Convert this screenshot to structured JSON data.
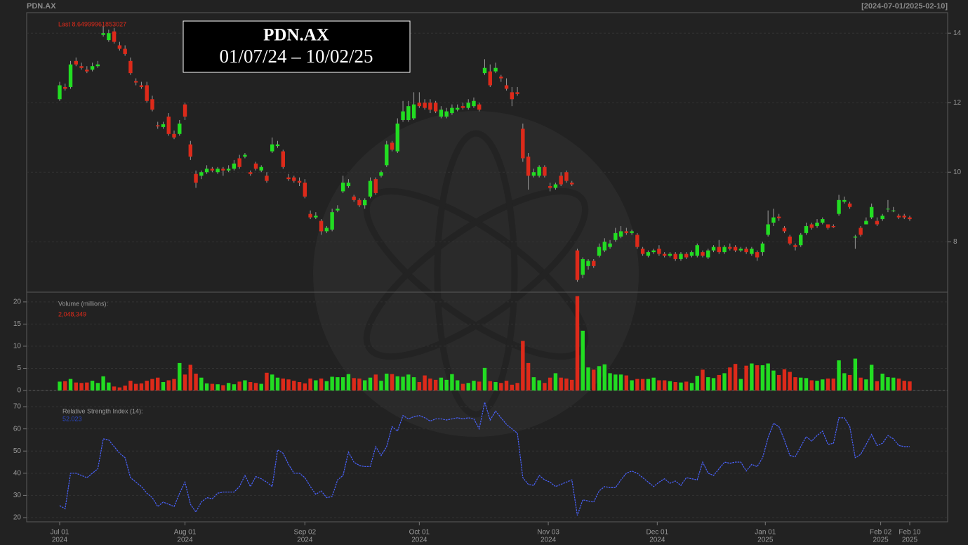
{
  "header": {
    "left": "PDN.AX",
    "right": "[2024-07-01/2025-02-10]"
  },
  "title_box": {
    "title": "PDN.AX",
    "subtitle": "01/07/24 – 10/02/25"
  },
  "chart_data": [
    {
      "type": "candlestick",
      "annotation": "Last 8.64999961853027",
      "x": [
        "2024-07-01",
        "2024-07-02",
        "2024-07-03",
        "2024-07-04",
        "2024-07-05",
        "2024-07-08",
        "2024-07-09",
        "2024-07-10",
        "2024-07-11",
        "2024-07-12",
        "2024-07-15",
        "2024-07-16",
        "2024-07-17",
        "2024-07-18",
        "2024-07-19",
        "2024-07-22",
        "2024-07-23",
        "2024-07-24",
        "2024-07-25",
        "2024-07-26",
        "2024-07-29",
        "2024-07-30",
        "2024-07-31",
        "2024-08-01",
        "2024-08-02",
        "2024-08-05",
        "2024-08-06",
        "2024-08-07",
        "2024-08-08",
        "2024-08-09",
        "2024-08-12",
        "2024-08-13",
        "2024-08-14",
        "2024-08-15",
        "2024-08-16",
        "2024-08-19",
        "2024-08-20",
        "2024-08-21",
        "2024-08-22",
        "2024-08-23",
        "2024-08-26",
        "2024-08-27",
        "2024-08-28",
        "2024-08-29",
        "2024-08-30",
        "2024-09-02",
        "2024-09-03",
        "2024-09-04",
        "2024-09-05",
        "2024-09-06",
        "2024-09-09",
        "2024-09-10",
        "2024-09-11",
        "2024-09-12",
        "2024-09-13",
        "2024-09-16",
        "2024-09-17",
        "2024-09-18",
        "2024-09-19",
        "2024-09-20",
        "2024-09-23",
        "2024-09-24",
        "2024-09-25",
        "2024-09-26",
        "2024-09-27",
        "2024-09-30",
        "2024-10-01",
        "2024-10-02",
        "2024-10-03",
        "2024-10-04",
        "2024-10-07",
        "2024-10-08",
        "2024-10-09",
        "2024-10-10",
        "2024-10-11",
        "2024-10-14",
        "2024-10-15",
        "2024-10-16",
        "2024-10-17",
        "2024-10-18",
        "2024-10-21",
        "2024-10-22",
        "2024-10-23",
        "2024-10-24",
        "2024-10-25",
        "2024-10-28",
        "2024-10-29",
        "2024-10-30",
        "2024-10-31",
        "2024-11-01",
        "2024-11-04",
        "2024-11-05",
        "2024-11-06",
        "2024-11-07",
        "2024-11-08",
        "2024-11-11",
        "2024-11-12",
        "2024-11-13",
        "2024-11-14",
        "2024-11-15",
        "2024-11-18",
        "2024-11-19",
        "2024-11-20",
        "2024-11-21",
        "2024-11-22",
        "2024-11-25",
        "2024-11-26",
        "2024-11-27",
        "2024-11-28",
        "2024-11-29",
        "2024-12-02",
        "2024-12-03",
        "2024-12-04",
        "2024-12-05",
        "2024-12-06",
        "2024-12-09",
        "2024-12-10",
        "2024-12-11",
        "2024-12-12",
        "2024-12-13",
        "2024-12-16",
        "2024-12-17",
        "2024-12-18",
        "2024-12-19",
        "2024-12-20",
        "2024-12-23",
        "2024-12-24",
        "2024-12-27",
        "2024-12-30",
        "2024-12-31",
        "2025-01-02",
        "2025-01-03",
        "2025-01-06",
        "2025-01-07",
        "2025-01-08",
        "2025-01-09",
        "2025-01-10",
        "2025-01-13",
        "2025-01-14",
        "2025-01-15",
        "2025-01-16",
        "2025-01-17",
        "2025-01-20",
        "2025-01-21",
        "2025-01-22",
        "2025-01-23",
        "2025-01-24",
        "2025-01-28",
        "2025-01-29",
        "2025-01-30",
        "2025-01-31",
        "2025-02-03",
        "2025-02-04",
        "2025-02-05",
        "2025-02-06",
        "2025-02-07",
        "2025-02-10"
      ],
      "open": [
        12.1,
        12.45,
        12.45,
        13.2,
        13.05,
        12.95,
        12.95,
        13.05,
        13.95,
        13.8,
        14.05,
        13.65,
        13.55,
        13.2,
        12.62,
        12.5,
        12.5,
        12.1,
        11.35,
        11.3,
        11.6,
        11.1,
        11.1,
        11.95,
        10.8,
        9.95,
        9.9,
        10.0,
        10.1,
        10.0,
        10.1,
        10.05,
        10.1,
        10.4,
        10.45,
        10.0,
        10.25,
        10.05,
        9.9,
        10.6,
        10.75,
        10.6,
        9.85,
        9.85,
        9.75,
        9.7,
        8.8,
        8.7,
        8.6,
        8.3,
        8.35,
        8.9,
        9.45,
        9.6,
        9.3,
        9.2,
        9.05,
        9.3,
        9.8,
        9.9,
        10.2,
        10.85,
        10.6,
        11.5,
        11.5,
        11.55,
        12.0,
        12.0,
        12.0,
        12.0,
        11.6,
        11.6,
        11.7,
        11.8,
        11.9,
        11.85,
        11.9,
        11.95,
        12.85,
        12.9,
        12.9,
        12.75,
        12.5,
        12.3,
        12.3,
        11.25,
        10.45,
        9.9,
        9.9,
        10.15,
        9.6,
        9.55,
        9.9,
        10.0,
        9.7,
        7.75,
        7.05,
        7.3,
        7.45,
        7.6,
        7.75,
        7.85,
        8.05,
        8.15,
        8.3,
        8.25,
        8.2,
        7.8,
        7.6,
        7.7,
        7.8,
        7.65,
        7.6,
        7.65,
        7.5,
        7.65,
        7.6,
        7.6,
        7.7,
        7.55,
        7.75,
        7.85,
        7.7,
        7.85,
        7.85,
        7.75,
        7.8,
        7.65,
        7.7,
        7.7,
        8.2,
        8.55,
        8.72,
        8.4,
        8.15,
        7.9,
        7.9,
        8.25,
        8.5,
        8.45,
        8.55,
        8.5,
        8.45,
        8.8,
        9.15,
        9.1,
        8.12,
        8.4,
        8.5,
        8.7,
        8.6,
        8.65,
        8.93,
        8.88,
        8.75,
        8.75,
        8.7
      ],
      "high": [
        12.6,
        12.55,
        13.2,
        13.3,
        13.15,
        13.05,
        13.15,
        13.2,
        14.2,
        14.1,
        14.15,
        13.75,
        13.65,
        13.3,
        12.7,
        12.6,
        12.6,
        12.2,
        11.45,
        11.45,
        11.7,
        11.2,
        11.5,
        12.0,
        10.9,
        10.05,
        10.05,
        10.2,
        10.15,
        10.15,
        10.15,
        10.2,
        10.35,
        10.5,
        10.55,
        10.05,
        10.3,
        10.2,
        10.0,
        11.0,
        10.9,
        10.65,
        9.95,
        9.9,
        9.85,
        9.8,
        8.9,
        8.85,
        8.65,
        8.45,
        8.95,
        9.05,
        9.9,
        9.8,
        9.35,
        9.25,
        9.25,
        9.85,
        9.85,
        10.05,
        10.9,
        10.9,
        11.55,
        12.05,
        12.05,
        12.3,
        12.3,
        12.1,
        12.1,
        12.05,
        11.9,
        11.85,
        11.95,
        11.95,
        12.0,
        12.1,
        12.15,
        12.0,
        13.25,
        13.1,
        13.15,
        12.8,
        12.7,
        12.45,
        12.45,
        11.4,
        10.55,
        10.1,
        10.2,
        10.2,
        9.7,
        9.7,
        10.0,
        10.05,
        9.75,
        7.8,
        7.55,
        7.5,
        7.5,
        7.95,
        8.1,
        8.05,
        8.4,
        8.45,
        8.4,
        8.35,
        8.25,
        7.85,
        7.75,
        7.8,
        7.9,
        7.7,
        7.7,
        7.7,
        7.7,
        7.7,
        7.75,
        7.95,
        7.75,
        7.8,
        7.9,
        8.05,
        7.9,
        7.95,
        7.9,
        7.85,
        7.85,
        7.85,
        7.75,
        8.0,
        8.9,
        8.95,
        8.8,
        8.45,
        8.2,
        7.95,
        8.25,
        8.55,
        8.55,
        8.65,
        8.7,
        8.5,
        8.5,
        9.35,
        9.3,
        9.15,
        8.2,
        8.45,
        8.7,
        9.1,
        8.7,
        8.8,
        9.2,
        9.0,
        8.8,
        8.8,
        8.75
      ],
      "low": [
        12.05,
        12.35,
        12.4,
        13.05,
        12.95,
        12.85,
        12.9,
        13.0,
        13.9,
        13.75,
        13.7,
        13.5,
        13.35,
        12.8,
        12.5,
        12.4,
        12.0,
        11.75,
        11.25,
        11.25,
        11.05,
        10.95,
        11.05,
        11.5,
        10.35,
        9.55,
        9.8,
        9.95,
        10.0,
        9.95,
        9.9,
        10.0,
        10.05,
        10.1,
        10.4,
        9.9,
        10.05,
        10.0,
        9.7,
        10.55,
        10.7,
        10.1,
        9.75,
        9.7,
        9.6,
        9.25,
        8.65,
        8.65,
        8.2,
        8.25,
        8.3,
        8.85,
        9.4,
        9.55,
        9.15,
        9.0,
        8.95,
        9.25,
        9.35,
        9.85,
        10.15,
        10.6,
        10.55,
        11.45,
        11.45,
        11.5,
        11.85,
        11.8,
        11.7,
        11.7,
        11.55,
        11.55,
        11.65,
        11.75,
        11.8,
        11.8,
        11.85,
        11.75,
        12.8,
        12.45,
        12.85,
        12.6,
        12.35,
        11.9,
        12.2,
        10.3,
        9.5,
        9.85,
        9.85,
        9.85,
        9.45,
        9.5,
        9.6,
        9.7,
        9.6,
        6.85,
        6.95,
        7.2,
        7.25,
        7.55,
        7.7,
        7.8,
        8.0,
        8.1,
        8.2,
        8.2,
        7.8,
        7.6,
        7.55,
        7.65,
        7.6,
        7.55,
        7.55,
        7.45,
        7.45,
        7.5,
        7.55,
        7.55,
        7.55,
        7.5,
        7.7,
        7.65,
        7.65,
        7.75,
        7.7,
        7.7,
        7.65,
        7.6,
        7.45,
        7.6,
        8.15,
        8.45,
        8.6,
        8.25,
        7.9,
        7.75,
        7.85,
        8.2,
        8.35,
        8.4,
        8.5,
        8.35,
        8.4,
        8.75,
        9.1,
        8.95,
        7.8,
        8.15,
        8.5,
        8.65,
        8.45,
        8.6,
        8.85,
        8.85,
        8.65,
        8.65,
        8.6
      ],
      "close": [
        12.5,
        12.4,
        13.1,
        13.1,
        13.0,
        12.9,
        13.05,
        13.1,
        14.0,
        14.0,
        13.75,
        13.55,
        13.4,
        12.85,
        12.58,
        12.45,
        12.05,
        11.8,
        11.32,
        11.38,
        11.1,
        11.0,
        11.4,
        11.6,
        10.45,
        9.7,
        10.0,
        10.1,
        10.05,
        10.1,
        10.05,
        10.1,
        10.25,
        10.15,
        10.5,
        9.95,
        10.1,
        10.15,
        9.75,
        10.8,
        10.8,
        10.15,
        9.8,
        9.75,
        9.7,
        9.3,
        8.7,
        8.75,
        8.3,
        8.4,
        8.85,
        8.95,
        9.7,
        9.7,
        9.2,
        9.05,
        9.2,
        9.75,
        9.4,
        10.0,
        10.8,
        10.65,
        11.4,
        11.75,
        11.9,
        11.95,
        11.9,
        11.85,
        11.8,
        11.75,
        11.8,
        11.75,
        11.85,
        11.85,
        11.85,
        12.0,
        12.05,
        11.8,
        13.0,
        12.5,
        13.0,
        12.7,
        12.4,
        12.1,
        12.25,
        10.4,
        9.9,
        10.0,
        10.15,
        9.9,
        9.55,
        9.65,
        9.65,
        9.75,
        9.65,
        6.9,
        7.5,
        7.45,
        7.3,
        7.85,
        8.0,
        7.95,
        8.25,
        8.3,
        8.25,
        8.3,
        7.85,
        7.65,
        7.7,
        7.75,
        7.65,
        7.6,
        7.65,
        7.5,
        7.65,
        7.55,
        7.7,
        7.9,
        7.6,
        7.75,
        7.85,
        7.7,
        7.85,
        7.8,
        7.75,
        7.8,
        7.7,
        7.8,
        7.55,
        7.95,
        8.5,
        8.7,
        8.68,
        8.3,
        7.95,
        7.85,
        8.2,
        8.45,
        8.4,
        8.55,
        8.65,
        8.4,
        8.42,
        9.2,
        9.2,
        9.0,
        8.15,
        8.2,
        8.6,
        9.0,
        8.5,
        8.75,
        8.95,
        8.9,
        8.7,
        8.7,
        8.65
      ],
      "up_color": "#22dd22",
      "down_color": "#dd2a1a",
      "ylim": [
        6.55,
        14.59
      ],
      "yticks": [
        8,
        10,
        12,
        14
      ],
      "grid": true,
      "xticks": [
        {
          "value": "2024-07-01",
          "label": "Jul 01",
          "year": "2024"
        },
        {
          "value": "2024-08-01",
          "label": "Aug 01",
          "year": "2024"
        },
        {
          "value": "2024-09-02",
          "label": "Sep 02",
          "year": "2024"
        },
        {
          "value": "2024-10-01",
          "label": "Oct 01",
          "year": "2024"
        },
        {
          "value": "2024-11-03",
          "label": "Nov 03",
          "year": "2024"
        },
        {
          "value": "2024-12-01",
          "label": "Dec 01",
          "year": "2024"
        },
        {
          "value": "2025-01-01",
          "label": "Jan 01",
          "year": "2025"
        },
        {
          "value": "2025-02-02",
          "label": "Feb 02",
          "year": "2025"
        },
        {
          "value": "2025-02-10",
          "label": "Feb 10",
          "year": "2025"
        }
      ]
    },
    {
      "type": "bar",
      "title": "Volume (millions):",
      "annotation": "2,048,349",
      "values": [
        2.0,
        2.1,
        2.6,
        1.8,
        1.7,
        1.8,
        2.2,
        1.7,
        3.2,
        1.8,
        0.9,
        0.7,
        1.1,
        2.2,
        1.5,
        1.6,
        2.2,
        2.6,
        2.9,
        1.9,
        2.3,
        2.6,
        6.2,
        3.6,
        5.8,
        3.8,
        2.9,
        1.6,
        1.5,
        1.4,
        1.2,
        1.7,
        1.4,
        2.0,
        2.3,
        1.9,
        1.7,
        1.5,
        4.0,
        3.6,
        2.9,
        2.7,
        2.5,
        2.2,
        1.9,
        1.6,
        2.7,
        2.3,
        2.7,
        2.1,
        3.1,
        3.0,
        3.0,
        3.7,
        2.8,
        2.7,
        2.3,
        2.9,
        3.6,
        2.2,
        3.8,
        3.7,
        3.2,
        3.1,
        3.6,
        3.0,
        1.9,
        3.4,
        2.7,
        2.4,
        2.9,
        2.4,
        3.7,
        2.3,
        1.5,
        1.7,
        2.2,
        2.0,
        5.1,
        2.1,
        1.9,
        1.7,
        2.2,
        1.3,
        1.7,
        11.2,
        6.2,
        3.0,
        2.3,
        1.7,
        2.9,
        3.9,
        2.9,
        2.7,
        2.4,
        21.3,
        13.5,
        5.2,
        4.7,
        5.5,
        5.9,
        3.9,
        3.6,
        3.6,
        3.4,
        2.3,
        2.6,
        2.6,
        2.6,
        2.9,
        2.3,
        2.3,
        2.1,
        1.9,
        1.8,
        2.0,
        1.7,
        3.3,
        4.7,
        3.0,
        2.8,
        3.5,
        3.9,
        5.2,
        6.0,
        2.6,
        5.6,
        6.1,
        5.7,
        5.7,
        6.1,
        4.5,
        3.5,
        4.8,
        4.2,
        3.0,
        2.9,
        2.8,
        2.3,
        2.2,
        2.5,
        2.7,
        2.7,
        6.8,
        3.9,
        3.5,
        7.2,
        2.9,
        2.5,
        5.8,
        2.1,
        3.8,
        3.0,
        2.9,
        2.7,
        2.2,
        2.05
      ],
      "ylim": [
        0,
        22.2
      ],
      "yticks": [
        0,
        5,
        10,
        15,
        20
      ],
      "grid": true
    },
    {
      "type": "line",
      "title": "Relative Strength Index (14):",
      "annotation": "52.023",
      "color": "#4a63ff",
      "values": [
        25.4,
        24,
        40,
        40,
        39,
        38,
        40,
        42,
        55.5,
        55,
        52,
        49,
        47,
        38,
        36,
        34,
        31,
        29,
        25,
        27,
        26,
        25,
        31,
        36,
        26,
        22.5,
        27,
        29,
        28.5,
        31,
        31.5,
        31.5,
        31.5,
        34,
        39,
        34,
        38.5,
        37.5,
        36,
        34,
        50.5,
        49,
        44,
        40,
        40,
        38,
        34,
        30.5,
        32,
        29,
        29.5,
        37,
        39,
        49.5,
        45,
        43.5,
        43,
        43,
        52,
        48,
        52,
        61,
        59,
        66,
        64.5,
        65.5,
        66,
        65,
        63.5,
        64.5,
        64.5,
        64,
        64.5,
        65,
        64.5,
        65,
        64.5,
        60,
        72,
        64,
        68,
        65,
        62,
        60,
        58,
        38,
        35,
        34.5,
        39,
        37,
        36,
        34,
        35,
        36,
        37,
        21,
        28,
        27.5,
        27,
        32,
        34,
        33.5,
        33.5,
        37,
        40,
        41,
        40,
        38,
        36,
        34,
        36,
        37.5,
        35.5,
        36.5,
        34.5,
        38,
        37.5,
        37,
        45,
        40,
        39,
        42,
        45,
        44.5,
        45,
        45,
        41,
        44,
        43,
        47,
        56,
        62.5,
        61,
        55,
        48,
        47.5,
        52,
        56.5,
        54.5,
        57,
        59,
        53,
        53.5,
        65,
        65,
        61,
        47,
        48.5,
        53,
        57.5,
        52.5,
        53.5,
        57,
        55.5,
        52.5,
        52,
        52.02
      ],
      "ylim": [
        18.1,
        77.3
      ],
      "yticks": [
        20,
        30,
        40,
        50,
        60,
        70
      ],
      "grid": true
    }
  ]
}
